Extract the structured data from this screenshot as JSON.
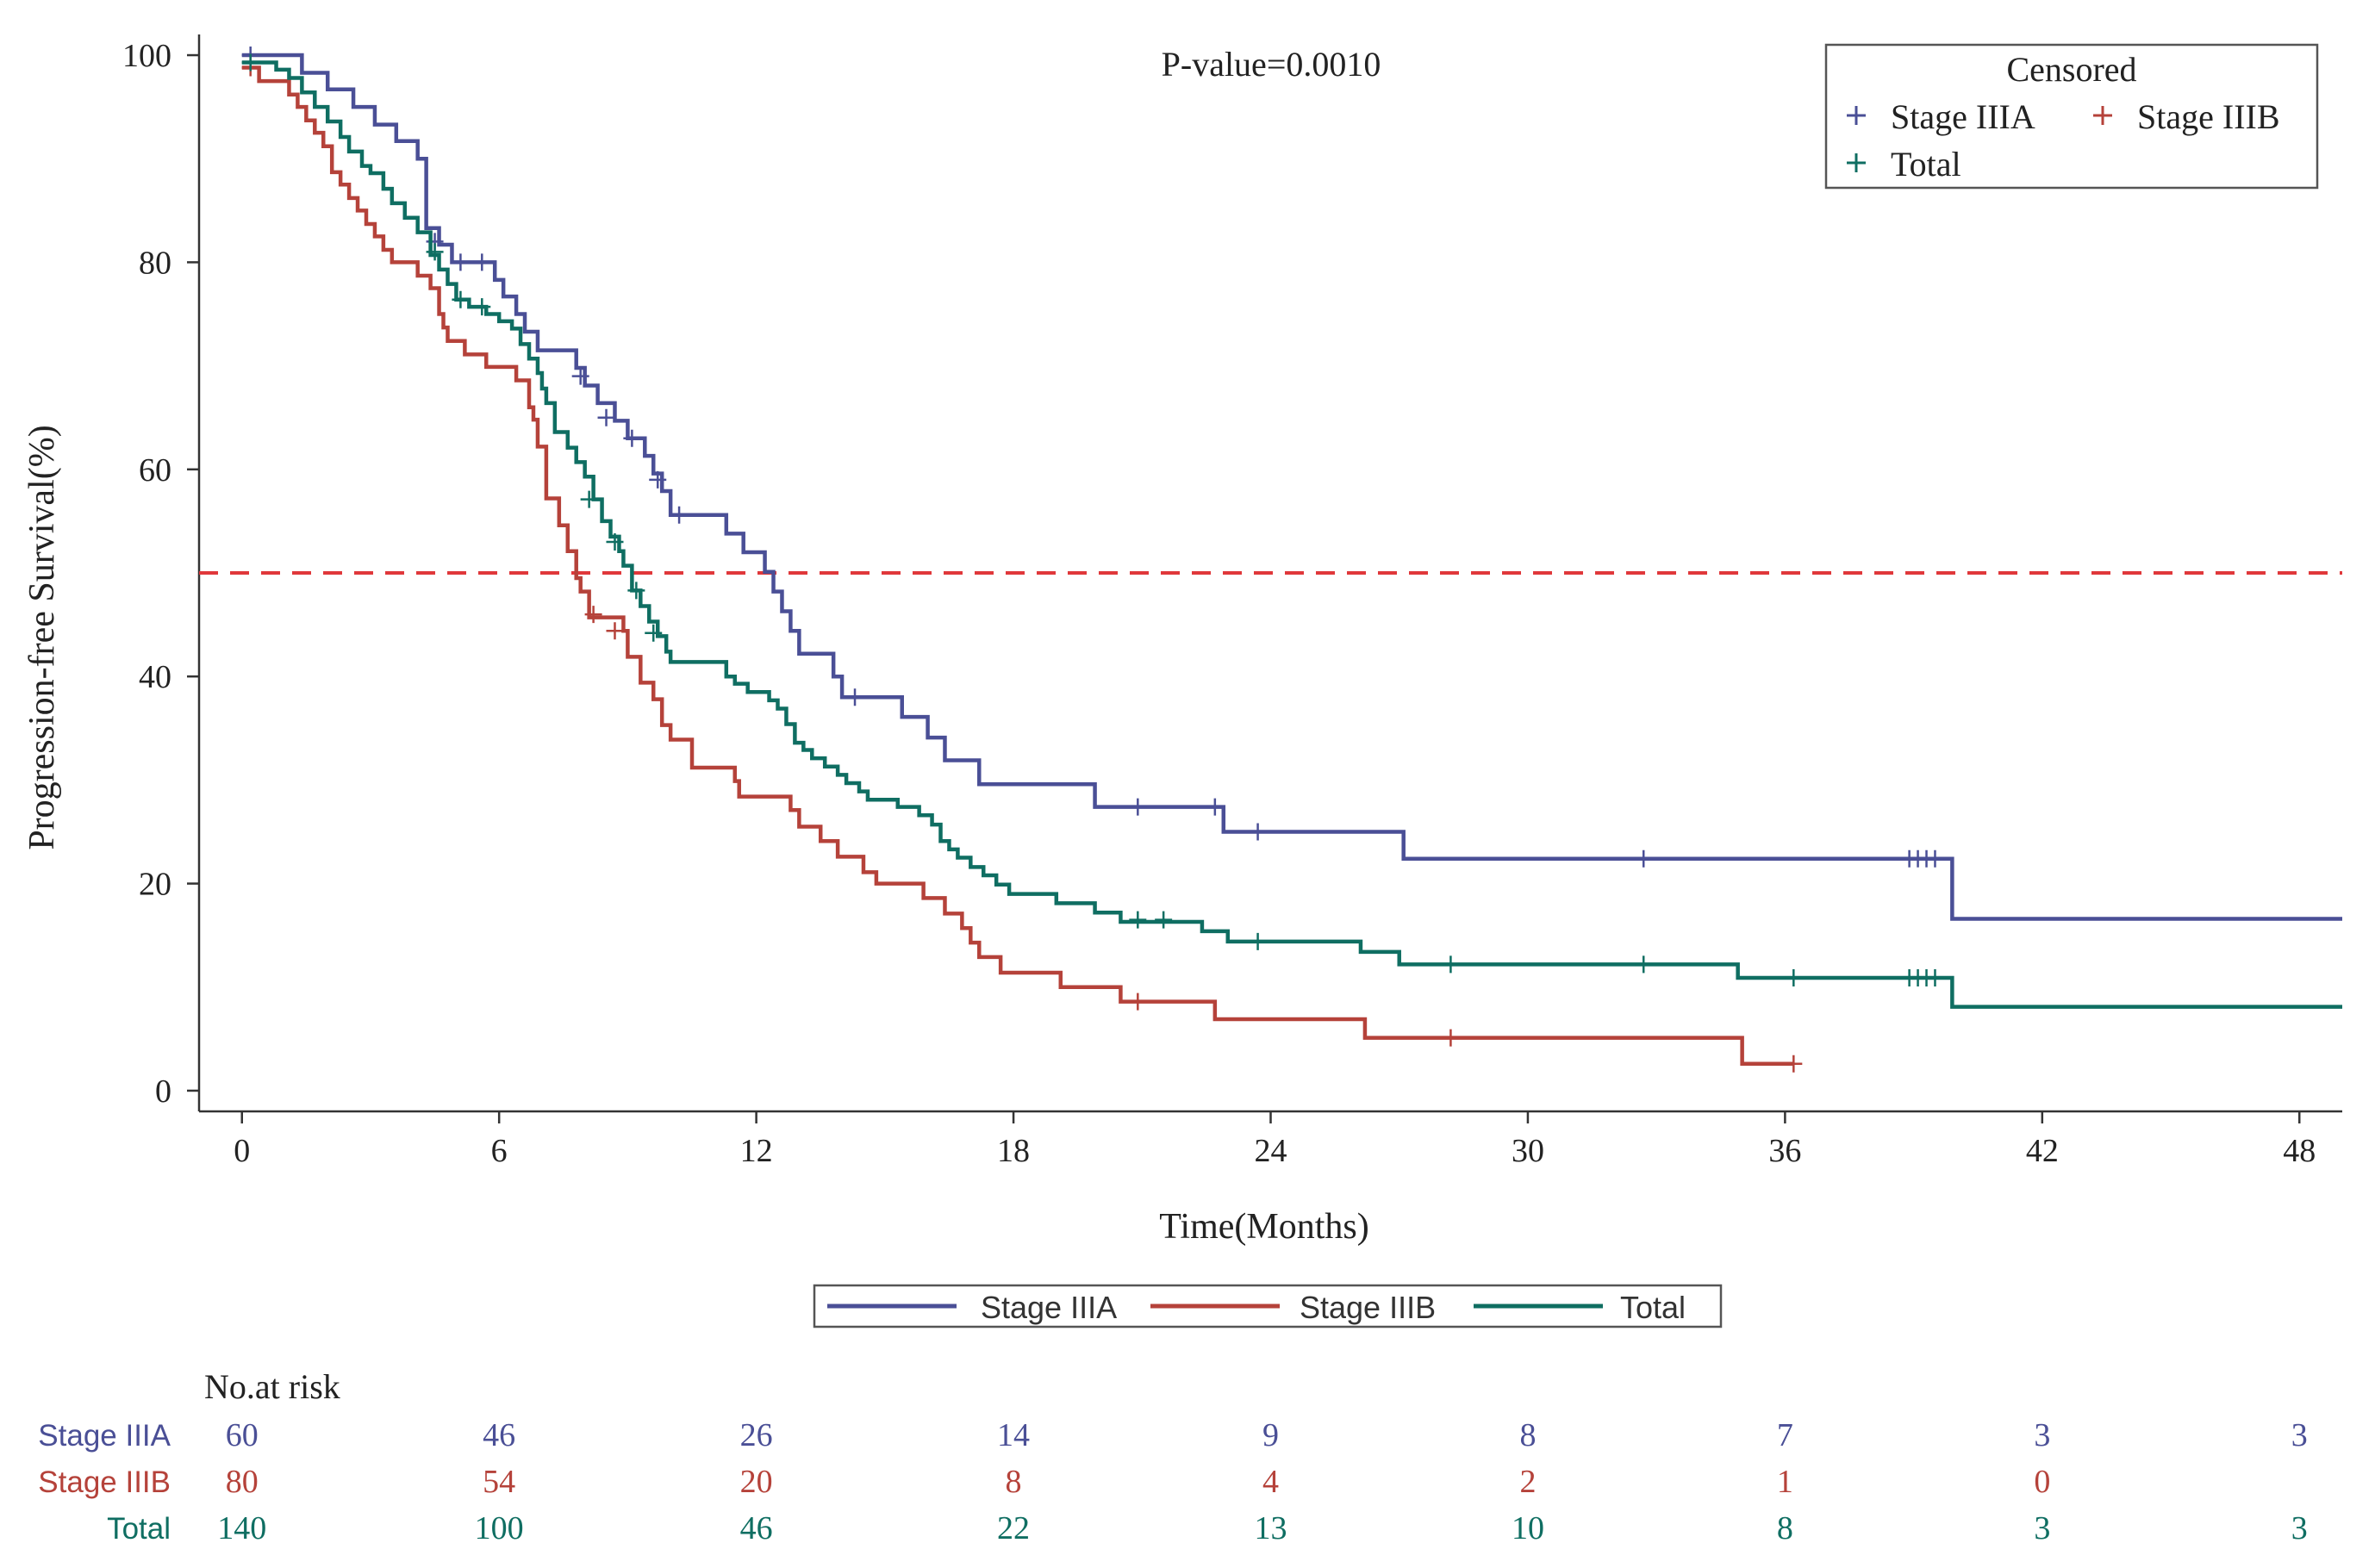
{
  "chart_data": {
    "type": "line",
    "subtype": "kaplan-meier step",
    "annotation": "P-value=0.0010",
    "xlabel": "Time(Months)",
    "ylabel": "Progression-free Survival(%)",
    "xlim": [
      -1,
      49
    ],
    "ylim": [
      -2,
      102
    ],
    "xticks": [
      0,
      6,
      12,
      18,
      24,
      30,
      36,
      42,
      48
    ],
    "yticks": [
      0,
      20,
      40,
      60,
      80,
      100
    ],
    "reference_line": {
      "y": 50,
      "color": "#e0383b",
      "style": "dashed"
    },
    "censored_legend": {
      "title": "Censored",
      "entries": [
        {
          "label": "Stage IIIA",
          "color": "#4a4f96"
        },
        {
          "label": "Stage IIIB",
          "color": "#b5423a"
        },
        {
          "label": "Total",
          "color": "#0f6e62"
        }
      ]
    },
    "line_legend": [
      {
        "label": "Stage IIIA",
        "color": "#4a4f96"
      },
      {
        "label": "Stage IIIB",
        "color": "#b5423a"
      },
      {
        "label": "Total",
        "color": "#0f6e62"
      }
    ],
    "series": [
      {
        "name": "Stage IIIA",
        "color": "#4a4f96",
        "steps": [
          [
            0,
            100
          ],
          [
            1.4,
            98.3
          ],
          [
            2,
            96.7
          ],
          [
            2.6,
            95
          ],
          [
            3.1,
            93.3
          ],
          [
            3.6,
            91.7
          ],
          [
            4.1,
            90
          ],
          [
            4.3,
            83.3
          ],
          [
            4.6,
            81.7
          ],
          [
            4.9,
            80
          ],
          [
            5.9,
            78.3
          ],
          [
            6.1,
            76.7
          ],
          [
            6.4,
            75
          ],
          [
            6.6,
            73.3
          ],
          [
            6.9,
            71.5
          ],
          [
            7.8,
            69.8
          ],
          [
            8,
            68.1
          ],
          [
            8.3,
            66.4
          ],
          [
            8.7,
            64.7
          ],
          [
            9,
            63
          ],
          [
            9.4,
            61.3
          ],
          [
            9.6,
            59.6
          ],
          [
            9.8,
            57.9
          ],
          [
            10,
            55.6
          ],
          [
            11.3,
            53.8
          ],
          [
            11.7,
            52
          ],
          [
            12.2,
            50.1
          ],
          [
            12.4,
            48.2
          ],
          [
            12.6,
            46.3
          ],
          [
            12.8,
            44.4
          ],
          [
            13,
            42.2
          ],
          [
            13.8,
            40
          ],
          [
            14,
            38
          ],
          [
            15.4,
            36.1
          ],
          [
            16,
            34.1
          ],
          [
            16.4,
            31.9
          ],
          [
            17.2,
            29.6
          ],
          [
            19.9,
            27.4
          ],
          [
            22.9,
            25
          ],
          [
            27.1,
            22.4
          ],
          [
            39.9,
            16.6
          ],
          [
            49,
            16.6
          ]
        ],
        "censored": [
          [
            0.2,
            100
          ],
          [
            4.5,
            82
          ],
          [
            5.1,
            80
          ],
          [
            5.6,
            80
          ],
          [
            7.9,
            69
          ],
          [
            8.5,
            65
          ],
          [
            9.1,
            63
          ],
          [
            9.7,
            59
          ],
          [
            10.2,
            55.6
          ],
          [
            14.3,
            38
          ],
          [
            20.9,
            27.4
          ],
          [
            22.7,
            27.4
          ],
          [
            23.7,
            25
          ],
          [
            32.7,
            22.4
          ],
          [
            38.9,
            22.4
          ],
          [
            39.1,
            22.4
          ],
          [
            39.3,
            22.4
          ],
          [
            39.5,
            22.4
          ]
        ]
      },
      {
        "name": "Stage IIIB",
        "color": "#b5423a",
        "steps": [
          [
            0,
            98.8
          ],
          [
            0.4,
            97.5
          ],
          [
            1.1,
            96.2
          ],
          [
            1.3,
            95
          ],
          [
            1.5,
            93.7
          ],
          [
            1.7,
            92.5
          ],
          [
            1.9,
            91.2
          ],
          [
            2.1,
            88.7
          ],
          [
            2.3,
            87.5
          ],
          [
            2.5,
            86.2
          ],
          [
            2.7,
            85
          ],
          [
            2.9,
            83.7
          ],
          [
            3.1,
            82.5
          ],
          [
            3.3,
            81.2
          ],
          [
            3.5,
            80
          ],
          [
            4.1,
            78.7
          ],
          [
            4.4,
            77.5
          ],
          [
            4.6,
            75
          ],
          [
            4.7,
            73.7
          ],
          [
            4.8,
            72.4
          ],
          [
            5.2,
            71.1
          ],
          [
            5.7,
            69.9
          ],
          [
            6.4,
            68.6
          ],
          [
            6.7,
            66
          ],
          [
            6.8,
            64.8
          ],
          [
            6.9,
            62.2
          ],
          [
            7.1,
            57.2
          ],
          [
            7.4,
            54.6
          ],
          [
            7.6,
            52.1
          ],
          [
            7.8,
            49.5
          ],
          [
            7.9,
            48.2
          ],
          [
            8.1,
            45.7
          ],
          [
            8.9,
            44.4
          ],
          [
            9,
            41.9
          ],
          [
            9.3,
            39.4
          ],
          [
            9.6,
            37.8
          ],
          [
            9.8,
            35.3
          ],
          [
            10,
            33.9
          ],
          [
            10.5,
            31.2
          ],
          [
            11.5,
            29.9
          ],
          [
            11.6,
            28.4
          ],
          [
            12.8,
            27.1
          ],
          [
            13,
            25.5
          ],
          [
            13.5,
            24.1
          ],
          [
            13.9,
            22.6
          ],
          [
            14.5,
            21.1
          ],
          [
            14.8,
            20
          ],
          [
            15.9,
            18.6
          ],
          [
            16.4,
            17.1
          ],
          [
            16.8,
            15.7
          ],
          [
            17,
            14.3
          ],
          [
            17.2,
            12.9
          ],
          [
            17.7,
            11.4
          ],
          [
            19.1,
            10
          ],
          [
            20.5,
            8.6
          ],
          [
            22.7,
            6.9
          ],
          [
            26.2,
            5.1
          ],
          [
            35,
            2.6
          ],
          [
            36.2,
            2.6
          ]
        ],
        "censored": [
          [
            0.2,
            98.8
          ],
          [
            8.2,
            46
          ],
          [
            8.7,
            44.4
          ],
          [
            20.9,
            8.6
          ],
          [
            28.2,
            5.1
          ],
          [
            36.2,
            2.6
          ]
        ]
      },
      {
        "name": "Total",
        "color": "#0f6e62",
        "steps": [
          [
            0,
            99.3
          ],
          [
            0.8,
            98.6
          ],
          [
            1.1,
            97.8
          ],
          [
            1.4,
            96.4
          ],
          [
            1.7,
            95
          ],
          [
            2,
            93.6
          ],
          [
            2.3,
            92.1
          ],
          [
            2.5,
            90.7
          ],
          [
            2.8,
            89.3
          ],
          [
            3,
            88.6
          ],
          [
            3.3,
            87.1
          ],
          [
            3.5,
            85.7
          ],
          [
            3.8,
            84.3
          ],
          [
            4.1,
            82.9
          ],
          [
            4.4,
            80.7
          ],
          [
            4.6,
            79.3
          ],
          [
            4.8,
            77.9
          ],
          [
            5,
            76.4
          ],
          [
            5.3,
            75.7
          ],
          [
            5.7,
            75
          ],
          [
            6,
            74.3
          ],
          [
            6.3,
            73.6
          ],
          [
            6.5,
            72.1
          ],
          [
            6.7,
            70.7
          ],
          [
            6.9,
            69.3
          ],
          [
            7,
            67.8
          ],
          [
            7.1,
            66.4
          ],
          [
            7.3,
            63.6
          ],
          [
            7.6,
            62.1
          ],
          [
            7.8,
            60.7
          ],
          [
            8,
            59.3
          ],
          [
            8.2,
            57.1
          ],
          [
            8.4,
            55
          ],
          [
            8.6,
            53.5
          ],
          [
            8.8,
            52.1
          ],
          [
            8.9,
            50.7
          ],
          [
            9.1,
            48.3
          ],
          [
            9.3,
            46.8
          ],
          [
            9.5,
            45.3
          ],
          [
            9.7,
            43.9
          ],
          [
            9.9,
            42.4
          ],
          [
            10,
            41.4
          ],
          [
            11.3,
            40
          ],
          [
            11.5,
            39.3
          ],
          [
            11.8,
            38.5
          ],
          [
            12.3,
            37.7
          ],
          [
            12.5,
            36.9
          ],
          [
            12.7,
            35.4
          ],
          [
            12.9,
            33.6
          ],
          [
            13.1,
            32.9
          ],
          [
            13.3,
            32.1
          ],
          [
            13.6,
            31.3
          ],
          [
            13.9,
            30.5
          ],
          [
            14.1,
            29.7
          ],
          [
            14.4,
            28.9
          ],
          [
            14.6,
            28.1
          ],
          [
            15.3,
            27.4
          ],
          [
            15.8,
            26.6
          ],
          [
            16.1,
            25.7
          ],
          [
            16.3,
            24.1
          ],
          [
            16.5,
            23.3
          ],
          [
            16.7,
            22.5
          ],
          [
            17,
            21.6
          ],
          [
            17.3,
            20.8
          ],
          [
            17.6,
            19.9
          ],
          [
            17.9,
            19
          ],
          [
            19,
            18.1
          ],
          [
            19.9,
            17.2
          ],
          [
            20.5,
            16.3
          ],
          [
            22.4,
            15.4
          ],
          [
            23,
            14.4
          ],
          [
            26.1,
            13.4
          ],
          [
            27,
            12.2
          ],
          [
            34.9,
            10.9
          ],
          [
            39.9,
            8.1
          ],
          [
            49,
            8.1
          ]
        ],
        "censored": [
          [
            0.2,
            99.3
          ],
          [
            4.5,
            81
          ],
          [
            5.1,
            76.4
          ],
          [
            5.6,
            75.7
          ],
          [
            8.1,
            57.1
          ],
          [
            8.7,
            53
          ],
          [
            9.2,
            48.3
          ],
          [
            9.6,
            44.2
          ],
          [
            20.9,
            16.5
          ],
          [
            21.5,
            16.5
          ],
          [
            23.7,
            14.4
          ],
          [
            28.2,
            12.2
          ],
          [
            32.7,
            12.2
          ],
          [
            36.2,
            10.9
          ],
          [
            38.9,
            10.9
          ],
          [
            39.1,
            10.9
          ],
          [
            39.3,
            10.9
          ],
          [
            39.5,
            10.9
          ]
        ]
      }
    ],
    "risk_table": {
      "title": "No.at risk",
      "times": [
        0,
        6,
        12,
        18,
        24,
        30,
        36,
        42,
        48
      ],
      "rows": [
        {
          "label": "Stage IIIA",
          "color": "#4a4f96",
          "values": [
            "60",
            "46",
            "26",
            "14",
            "9",
            "8",
            "7",
            "3",
            "3"
          ]
        },
        {
          "label": "Stage IIIB",
          "color": "#b5423a",
          "values": [
            "80",
            "54",
            "20",
            "8",
            "4",
            "2",
            "1",
            "0",
            ""
          ]
        },
        {
          "label": "Total",
          "color": "#0f6e62",
          "values": [
            "140",
            "100",
            "46",
            "22",
            "13",
            "10",
            "8",
            "3",
            "3"
          ]
        }
      ]
    }
  }
}
